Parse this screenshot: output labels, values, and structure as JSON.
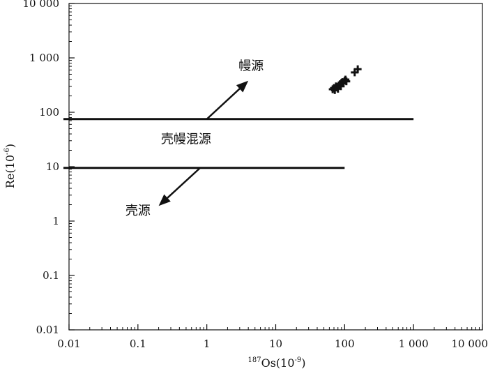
{
  "chart_data": {
    "type": "scatter",
    "x_scale": "log",
    "y_scale": "log",
    "xlim": [
      0.01,
      10000
    ],
    "ylim": [
      0.01,
      10000
    ],
    "grid": false,
    "xlabel": {
      "sup": "187",
      "base": "Os(10",
      "exp": "-9",
      "close": ")"
    },
    "ylabel": {
      "base": "Re(10",
      "exp": "-6",
      "close": ")"
    },
    "x_ticks": [
      {
        "value": 0.01,
        "label": "0.01"
      },
      {
        "value": 0.1,
        "label": "0.1"
      },
      {
        "value": 1,
        "label": "1"
      },
      {
        "value": 10,
        "label": "10"
      },
      {
        "value": 100,
        "label": "100"
      },
      {
        "value": 1000,
        "label": "1 000"
      },
      {
        "value": 10000,
        "label": "10 000"
      }
    ],
    "y_ticks": [
      {
        "value": 0.01,
        "label": "0.01"
      },
      {
        "value": 0.1,
        "label": "0.1"
      },
      {
        "value": 1,
        "label": "1"
      },
      {
        "value": 10,
        "label": "10"
      },
      {
        "value": 100,
        "label": "100"
      },
      {
        "value": 1000,
        "label": "1 000"
      },
      {
        "value": 10000,
        "label": "10 000"
      }
    ],
    "boundary_lines": [
      {
        "name": "upper",
        "x": [
          0.01,
          1000
        ],
        "y": 75
      },
      {
        "name": "lower",
        "x": [
          0.01,
          100
        ],
        "y": 9.5
      }
    ],
    "arrows": [
      {
        "name": "mantle",
        "from": [
          1,
          75
        ],
        "to": [
          4,
          380
        ]
      },
      {
        "name": "crust",
        "from": [
          0.8,
          9.5
        ],
        "to": [
          0.2,
          1.9
        ]
      }
    ],
    "annotations": [
      {
        "name": "mantle",
        "text": "幔源",
        "x": 4.4,
        "y": 600
      },
      {
        "name": "crust-mantle",
        "text": "壳幔混源",
        "x": 0.5,
        "y": 27
      },
      {
        "name": "crust",
        "text": "壳源",
        "x": 0.1,
        "y": 1.3
      }
    ],
    "points": [
      {
        "x": 67,
        "y": 265
      },
      {
        "x": 70,
        "y": 280
      },
      {
        "x": 72,
        "y": 255
      },
      {
        "x": 75,
        "y": 300
      },
      {
        "x": 78,
        "y": 285
      },
      {
        "x": 80,
        "y": 270
      },
      {
        "x": 83,
        "y": 310
      },
      {
        "x": 86,
        "y": 330
      },
      {
        "x": 88,
        "y": 300
      },
      {
        "x": 90,
        "y": 350
      },
      {
        "x": 93,
        "y": 360
      },
      {
        "x": 96,
        "y": 340
      },
      {
        "x": 100,
        "y": 380
      },
      {
        "x": 103,
        "y": 400
      },
      {
        "x": 106,
        "y": 370
      },
      {
        "x": 140,
        "y": 540
      },
      {
        "x": 155,
        "y": 620
      }
    ]
  }
}
